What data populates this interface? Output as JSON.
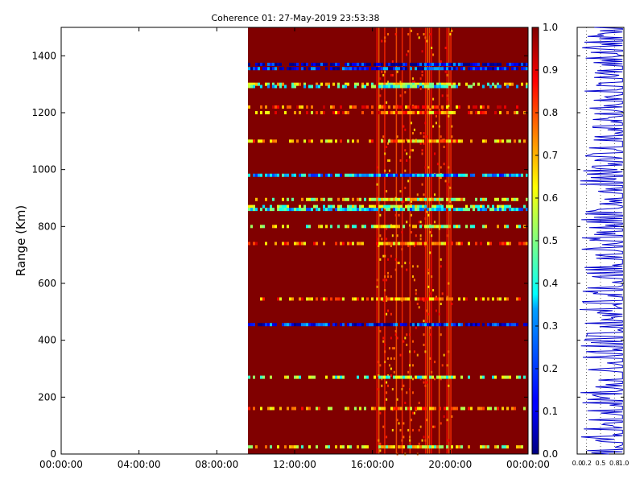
{
  "chart_data": [
    {
      "type": "heatmap",
      "title": "Coherence 01: 27-May-2019 23:53:38",
      "xlabel": "",
      "ylabel": "Range (Km)",
      "xlim_hours": [
        0,
        24
      ],
      "ylim": [
        0,
        1500
      ],
      "x_tick_labels": [
        "00:00:00",
        "04:00:00",
        "08:00:00",
        "12:00:00",
        "16:00:00",
        "20:00:00",
        "00:00:00"
      ],
      "x_tick_hours": [
        0,
        4,
        8,
        12,
        16,
        20,
        24
      ],
      "y_ticks": [
        0,
        200,
        400,
        600,
        800,
        1000,
        1200,
        1400
      ],
      "data_start_hour": 9.6,
      "background_value": 1.0,
      "variable_band_hours": [
        [
          16.2,
          20.1
        ],
        [
          21.6,
          21.7
        ]
      ],
      "low_coherence_rows": [
        {
          "range_km": 1370,
          "typical_value": 0.1
        },
        {
          "range_km": 1355,
          "typical_value": 0.15
        },
        {
          "range_km": 1300,
          "typical_value": 0.6
        },
        {
          "range_km": 1292,
          "typical_value": 0.4
        },
        {
          "range_km": 1220,
          "typical_value": 0.8
        },
        {
          "range_km": 1200,
          "typical_value": 0.75
        },
        {
          "range_km": 1100,
          "typical_value": 0.7
        },
        {
          "range_km": 980,
          "typical_value": 0.3
        },
        {
          "range_km": 895,
          "typical_value": 0.6
        },
        {
          "range_km": 870,
          "typical_value": 0.5
        },
        {
          "range_km": 860,
          "typical_value": 0.35
        },
        {
          "range_km": 800,
          "typical_value": 0.55
        },
        {
          "range_km": 740,
          "typical_value": 0.75
        },
        {
          "range_km": 545,
          "typical_value": 0.75
        },
        {
          "range_km": 455,
          "typical_value": 0.15
        },
        {
          "range_km": 270,
          "typical_value": 0.5
        },
        {
          "range_km": 160,
          "typical_value": 0.7
        },
        {
          "range_km": 25,
          "typical_value": 0.6
        }
      ]
    },
    {
      "type": "colorbar",
      "vlim": [
        0.0,
        1.0
      ],
      "tick_labels": [
        "0.0",
        "0.1",
        "0.2",
        "0.3",
        "0.4",
        "0.5",
        "0.6",
        "0.7",
        "0.8",
        "0.9",
        "1.0"
      ],
      "colormap": "jet"
    },
    {
      "type": "line",
      "xlim": [
        0.0,
        1.0
      ],
      "x_tick_labels": [
        "0.0",
        "0.2",
        "0.5",
        "0.8",
        "1.0"
      ],
      "ylim": [
        0,
        1500
      ],
      "line_color": "#0000cc",
      "typical_value": 0.97
    }
  ]
}
